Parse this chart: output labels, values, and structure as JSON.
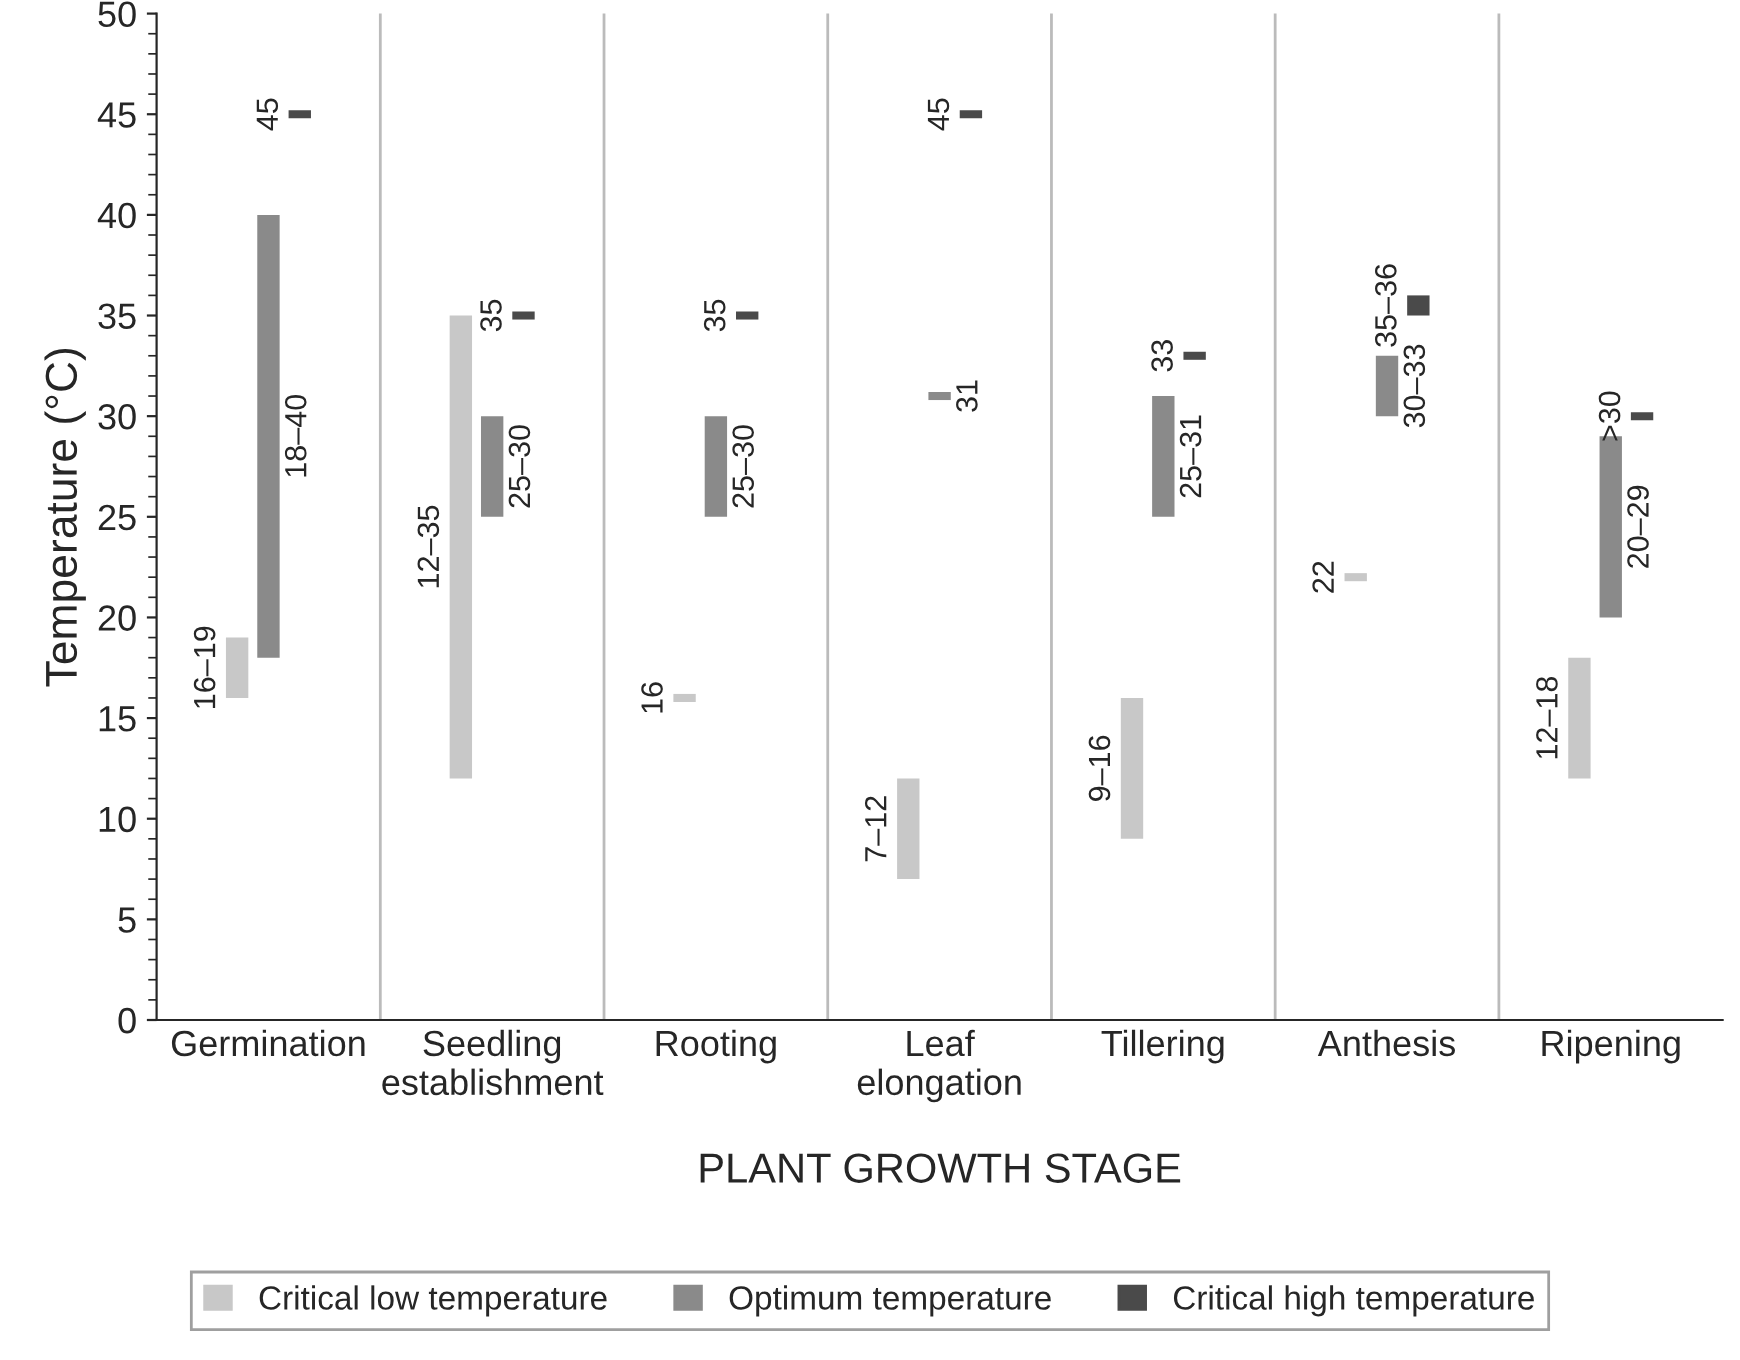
{
  "chart_data": {
    "type": "bar",
    "xlabel": "PLANT GROWTH STAGE",
    "ylabel": "Temperature (°C)",
    "categories": [
      "Germination",
      "Seedling\nestablishment",
      "Rooting",
      "Leaf\nelongation",
      "Tillering",
      "Anthesis",
      "Ripening"
    ],
    "series": [
      {
        "name": "Critical low temperature",
        "color": "#c8c8c8",
        "base": [
          16,
          12,
          15.8,
          7,
          9,
          21.8,
          12
        ],
        "values": [
          3,
          23,
          0.4,
          5,
          7,
          0.4,
          6
        ],
        "value_labels": [
          "16–19",
          "12–35",
          "16",
          "7–12",
          "9–16",
          "22",
          "12–18"
        ]
      },
      {
        "name": "Optimum temperature",
        "color": "#8a8a8a",
        "base": [
          18,
          25,
          25,
          30.8,
          25,
          30,
          20
        ],
        "values": [
          22,
          5,
          5,
          0.4,
          6,
          3,
          9
        ],
        "value_labels": [
          "18–40",
          "25–30",
          "25–30",
          "31",
          "25–31",
          "30–33",
          "20–29"
        ]
      },
      {
        "name": "Critical high temperature",
        "color": "#4a4a4a",
        "base": [
          44.8,
          34.8,
          34.8,
          44.8,
          32.8,
          35,
          29.8
        ],
        "values": [
          0.4,
          0.4,
          0.4,
          0.4,
          0.4,
          1,
          0.4
        ],
        "value_labels": [
          "45",
          "35",
          "35",
          "45",
          "33",
          "35–36",
          ">30"
        ]
      }
    ],
    "ylim": [
      0,
      50
    ],
    "yticks": [
      0,
      5,
      10,
      15,
      20,
      25,
      30,
      35,
      40,
      45,
      50
    ],
    "grid": "x",
    "legend": "bottom"
  }
}
